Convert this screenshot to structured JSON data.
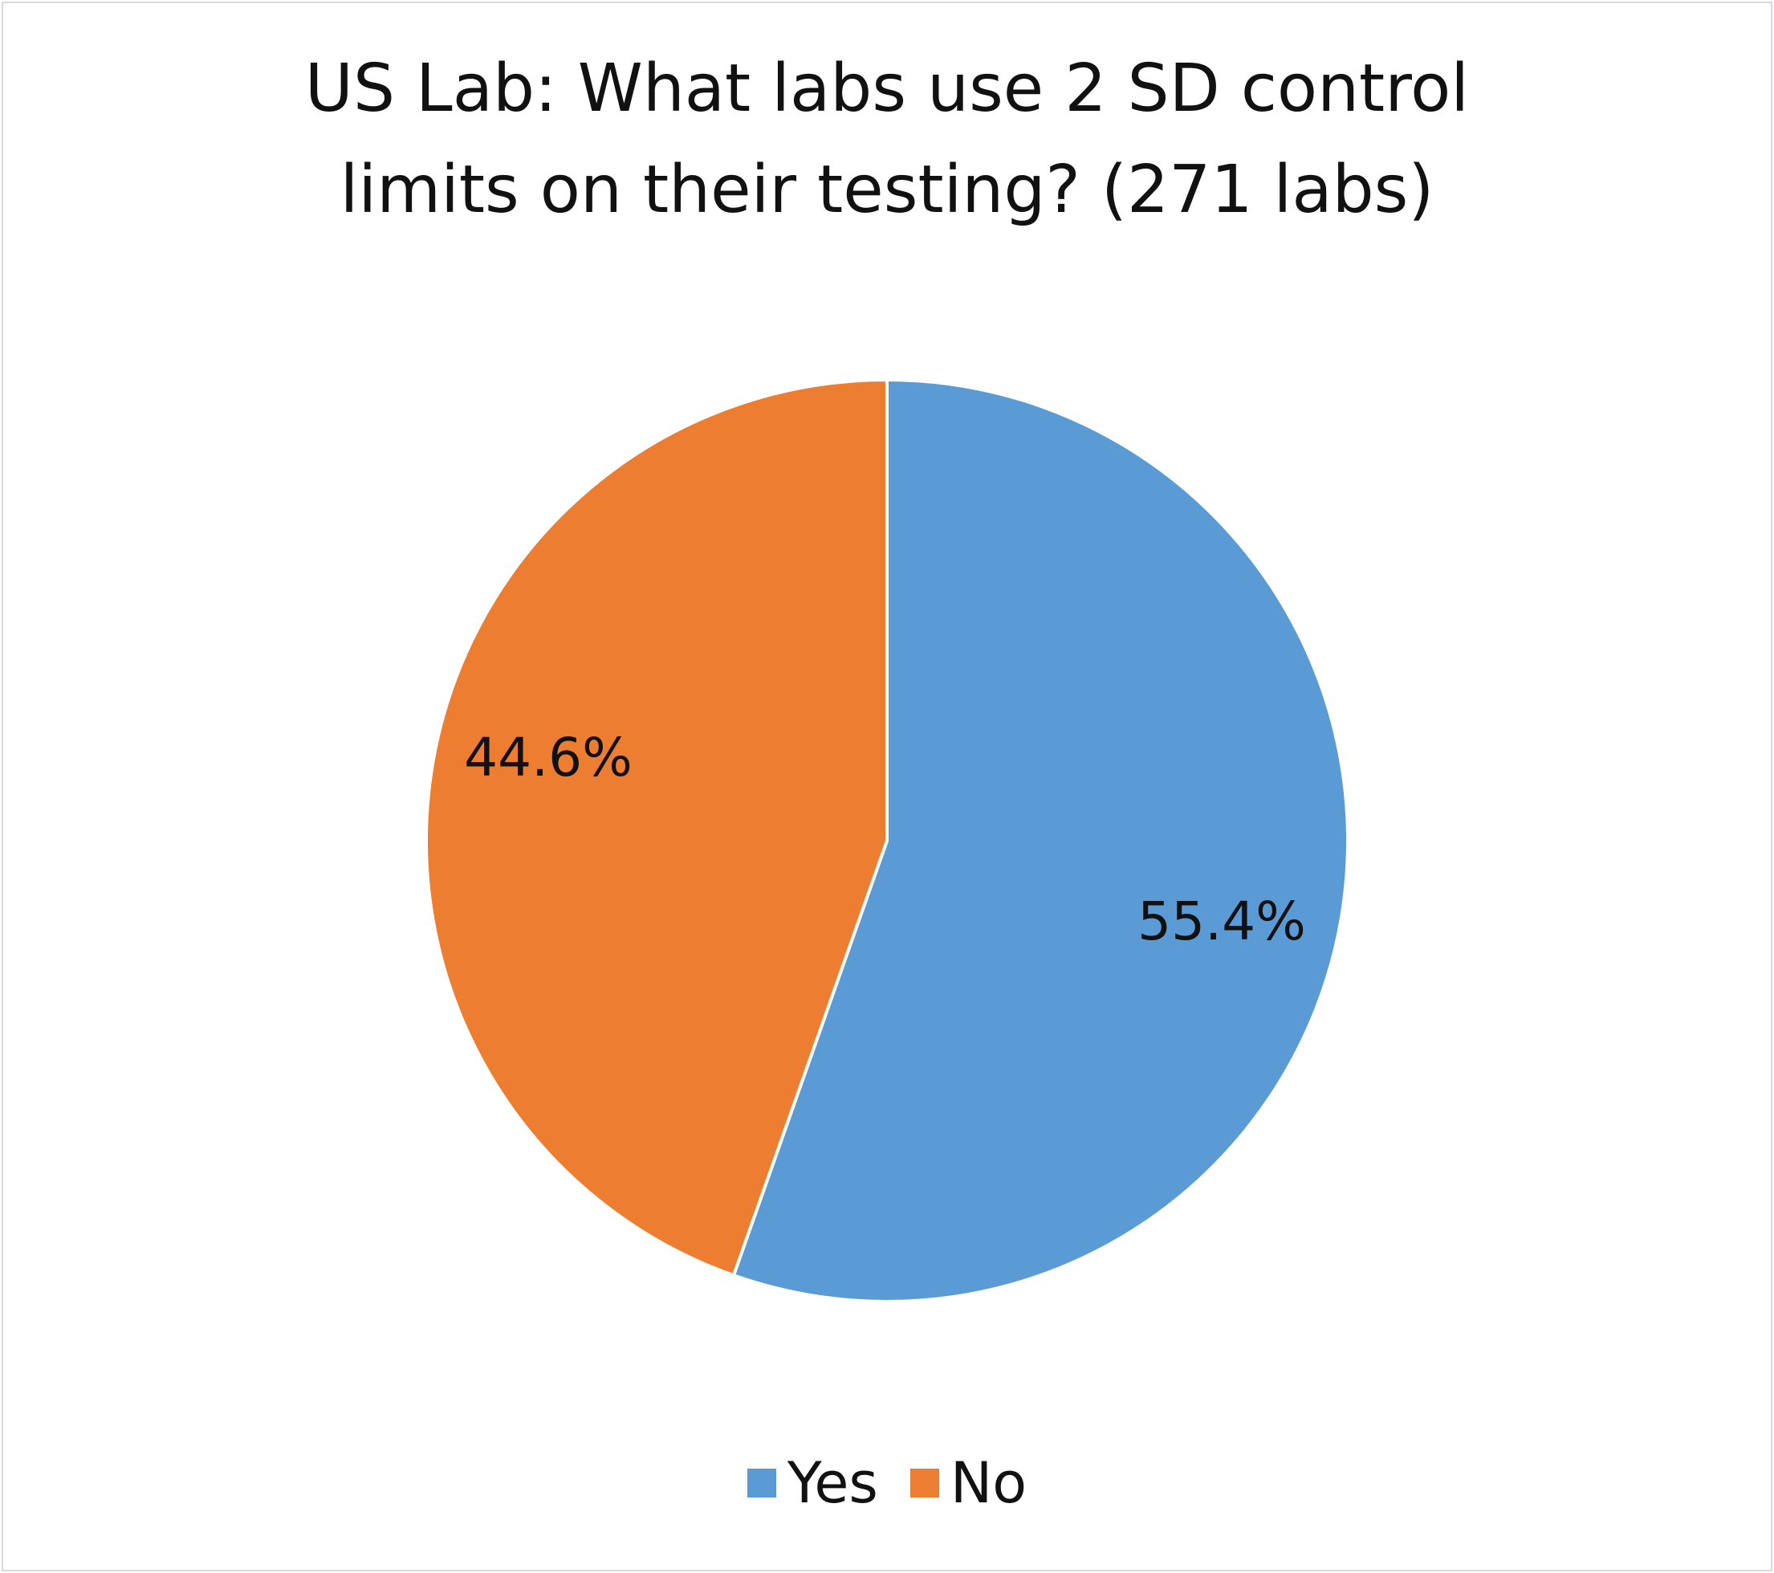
{
  "chart_data": {
    "type": "pie",
    "title": [
      "US Lab: What labs use 2 SD control",
      "limits on their testing? (271 labs)"
    ],
    "categories": [
      "Yes",
      "No"
    ],
    "values": [
      55.4,
      44.6
    ],
    "data_labels": [
      "55.4%",
      "44.6%"
    ],
    "colors": [
      "#5B9BD5",
      "#ED7D31"
    ],
    "start_angle_deg": 0,
    "direction": "clockwise",
    "legend_position": "bottom"
  }
}
